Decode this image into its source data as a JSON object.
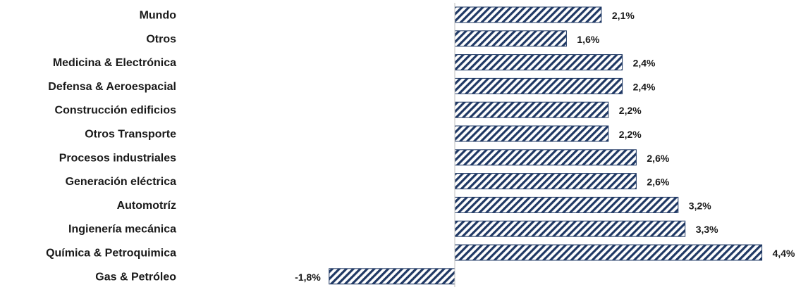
{
  "chart_data": {
    "type": "bar",
    "orientation": "horizontal",
    "title": "",
    "xlabel": "",
    "ylabel": "",
    "categories": [
      "Mundo",
      "Otros",
      "Medicina & Electrónica",
      "Defensa & Aeroespacial",
      "Construcción edificios",
      "Otros Transporte",
      "Procesos industriales",
      "Generación eléctrica",
      "Automotríz",
      "Ingienería mecánica",
      "Química & Petroquimica",
      "Gas & Petróleo"
    ],
    "values": [
      2.1,
      1.6,
      2.4,
      2.4,
      2.2,
      2.2,
      2.6,
      2.6,
      3.2,
      3.3,
      4.4,
      -1.8
    ],
    "value_labels": [
      "2,1%",
      "1,6%",
      "2,4%",
      "2,4%",
      "2,2%",
      "2,2%",
      "2,6%",
      "2,6%",
      "3,2%",
      "3,3%",
      "4,4%",
      "-1,8%"
    ],
    "xlim": [
      -1.8,
      4.4
    ],
    "grid": false,
    "legend": "none",
    "bar_fill": "diagonal-hatch",
    "colors": {
      "bar": "#1f3864",
      "axis": "#bfbfbf",
      "text": "#1a1a1a"
    }
  }
}
